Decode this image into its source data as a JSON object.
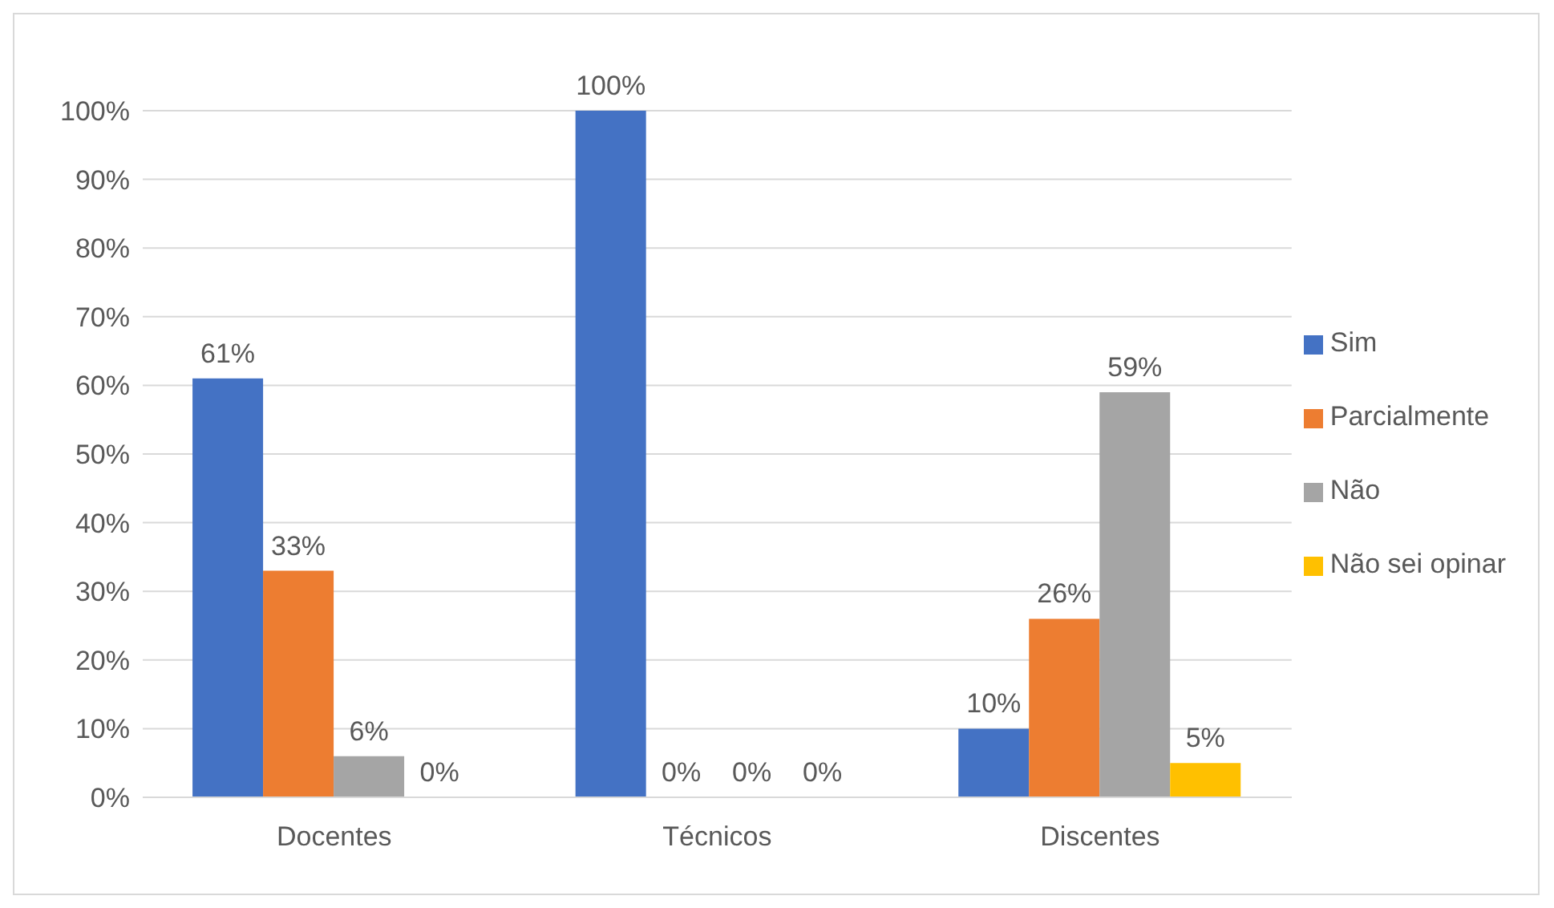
{
  "chart_data": {
    "type": "bar",
    "categories": [
      "Docentes",
      "Técnicos",
      "Discentes"
    ],
    "series": [
      {
        "name": "Sim",
        "color": "#4472c4",
        "values": [
          61,
          100,
          10
        ],
        "value_labels": [
          "61%",
          "100%",
          "10%"
        ]
      },
      {
        "name": "Parcialmente",
        "color": "#ed7d31",
        "values": [
          33,
          0,
          26
        ],
        "value_labels": [
          "33%",
          "0%",
          "26%"
        ]
      },
      {
        "name": "Não",
        "color": "#a5a5a5",
        "values": [
          6,
          0,
          59
        ],
        "value_labels": [
          "6%",
          "0%",
          "59%"
        ]
      },
      {
        "name": "Não sei opinar",
        "color": "#ffc000",
        "values": [
          0,
          0,
          5
        ],
        "value_labels": [
          "0%",
          "0%",
          "5%"
        ]
      }
    ],
    "ylim": [
      0,
      100
    ],
    "yticks": [
      {
        "value": 0,
        "label": "0%"
      },
      {
        "value": 10,
        "label": "10%"
      },
      {
        "value": 20,
        "label": "20%"
      },
      {
        "value": 30,
        "label": "30%"
      },
      {
        "value": 40,
        "label": "40%"
      },
      {
        "value": 50,
        "label": "50%"
      },
      {
        "value": 60,
        "label": "60%"
      },
      {
        "value": 70,
        "label": "70%"
      },
      {
        "value": 80,
        "label": "80%"
      },
      {
        "value": 90,
        "label": "90%"
      },
      {
        "value": 100,
        "label": "100%"
      }
    ],
    "grid": "y",
    "legend": "right"
  }
}
